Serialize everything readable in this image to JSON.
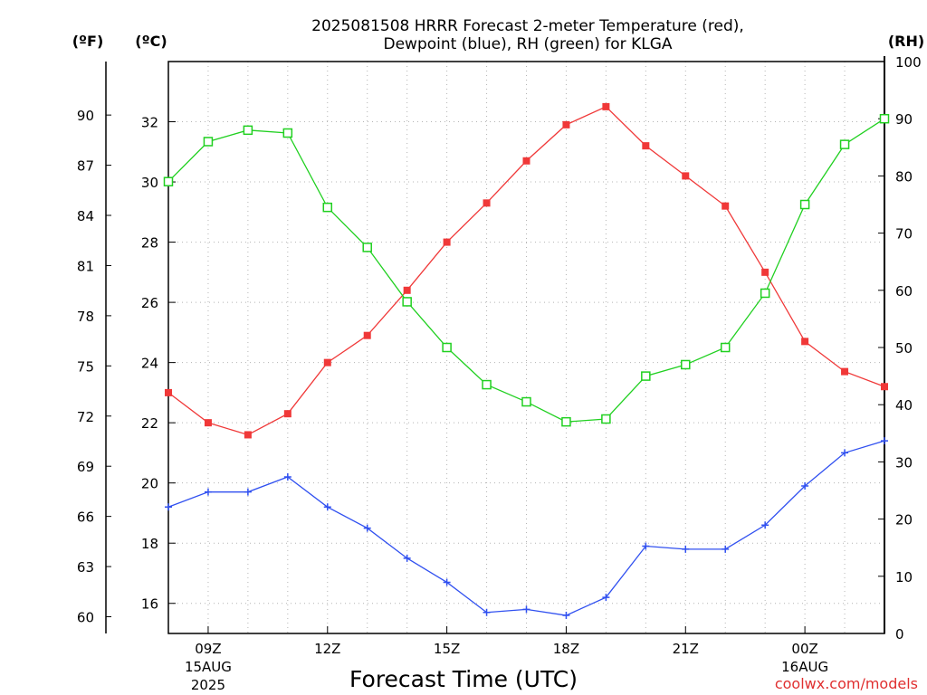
{
  "chart_data": {
    "type": "line",
    "title_line1": "2025081508 HRRR Forecast 2-meter Temperature (red),",
    "title_line2": "Dewpoint (blue), RH (green) for KLGA",
    "xlabel": "Forecast Time (UTC)",
    "credit": "coolwx.com/models",
    "unit_f": "(ºF)",
    "unit_c": "(ºC)",
    "unit_rh": "(RH)",
    "x": [
      "08Z",
      "09Z",
      "10Z",
      "11Z",
      "12Z",
      "13Z",
      "14Z",
      "15Z",
      "16Z",
      "17Z",
      "18Z",
      "19Z",
      "20Z",
      "21Z",
      "22Z",
      "23Z",
      "00Z",
      "01Z",
      "02Z"
    ],
    "x_ticks": [
      {
        "label": "09Z",
        "index": 1,
        "sub1": "15AUG",
        "sub2": "2025"
      },
      {
        "label": "12Z",
        "index": 4,
        "sub1": "",
        "sub2": ""
      },
      {
        "label": "15Z",
        "index": 7,
        "sub1": "",
        "sub2": ""
      },
      {
        "label": "18Z",
        "index": 10,
        "sub1": "",
        "sub2": ""
      },
      {
        "label": "21Z",
        "index": 13,
        "sub1": "",
        "sub2": ""
      },
      {
        "label": "00Z",
        "index": 16,
        "sub1": "16AUG",
        "sub2": ""
      }
    ],
    "celsius_ylim": [
      15,
      34
    ],
    "celsius_ticks": [
      16,
      18,
      20,
      22,
      24,
      26,
      28,
      30,
      32
    ],
    "fahrenheit_ticks": [
      60,
      63,
      66,
      69,
      72,
      75,
      78,
      81,
      84,
      87,
      90
    ],
    "rh_ylim": [
      0,
      100
    ],
    "rh_ticks": [
      0,
      10,
      20,
      30,
      40,
      50,
      60,
      70,
      80,
      90,
      100
    ],
    "grid": true,
    "series": [
      {
        "name": "Temperature",
        "axis": "celsius",
        "color": "#f03838",
        "marker": "filled-square",
        "values": [
          23.0,
          22.0,
          21.6,
          22.3,
          24.0,
          24.9,
          26.4,
          28.0,
          29.3,
          30.7,
          31.9,
          32.5,
          31.2,
          30.2,
          29.2,
          27.0,
          24.7,
          23.7,
          23.2
        ]
      },
      {
        "name": "Dewpoint",
        "axis": "celsius",
        "color": "#3050f0",
        "marker": "plus",
        "values": [
          19.2,
          19.7,
          19.7,
          20.2,
          19.2,
          18.5,
          17.5,
          16.7,
          15.7,
          15.8,
          15.6,
          16.2,
          17.9,
          17.8,
          17.8,
          18.6,
          19.9,
          21.0,
          21.4
        ]
      },
      {
        "name": "RH",
        "axis": "rh",
        "color": "#20d020",
        "marker": "open-square",
        "values": [
          79,
          86,
          88,
          87.5,
          74.5,
          67.5,
          58,
          50,
          43.5,
          40.5,
          37,
          37.5,
          45,
          47,
          50,
          59.5,
          75,
          85.5,
          90
        ]
      }
    ]
  }
}
